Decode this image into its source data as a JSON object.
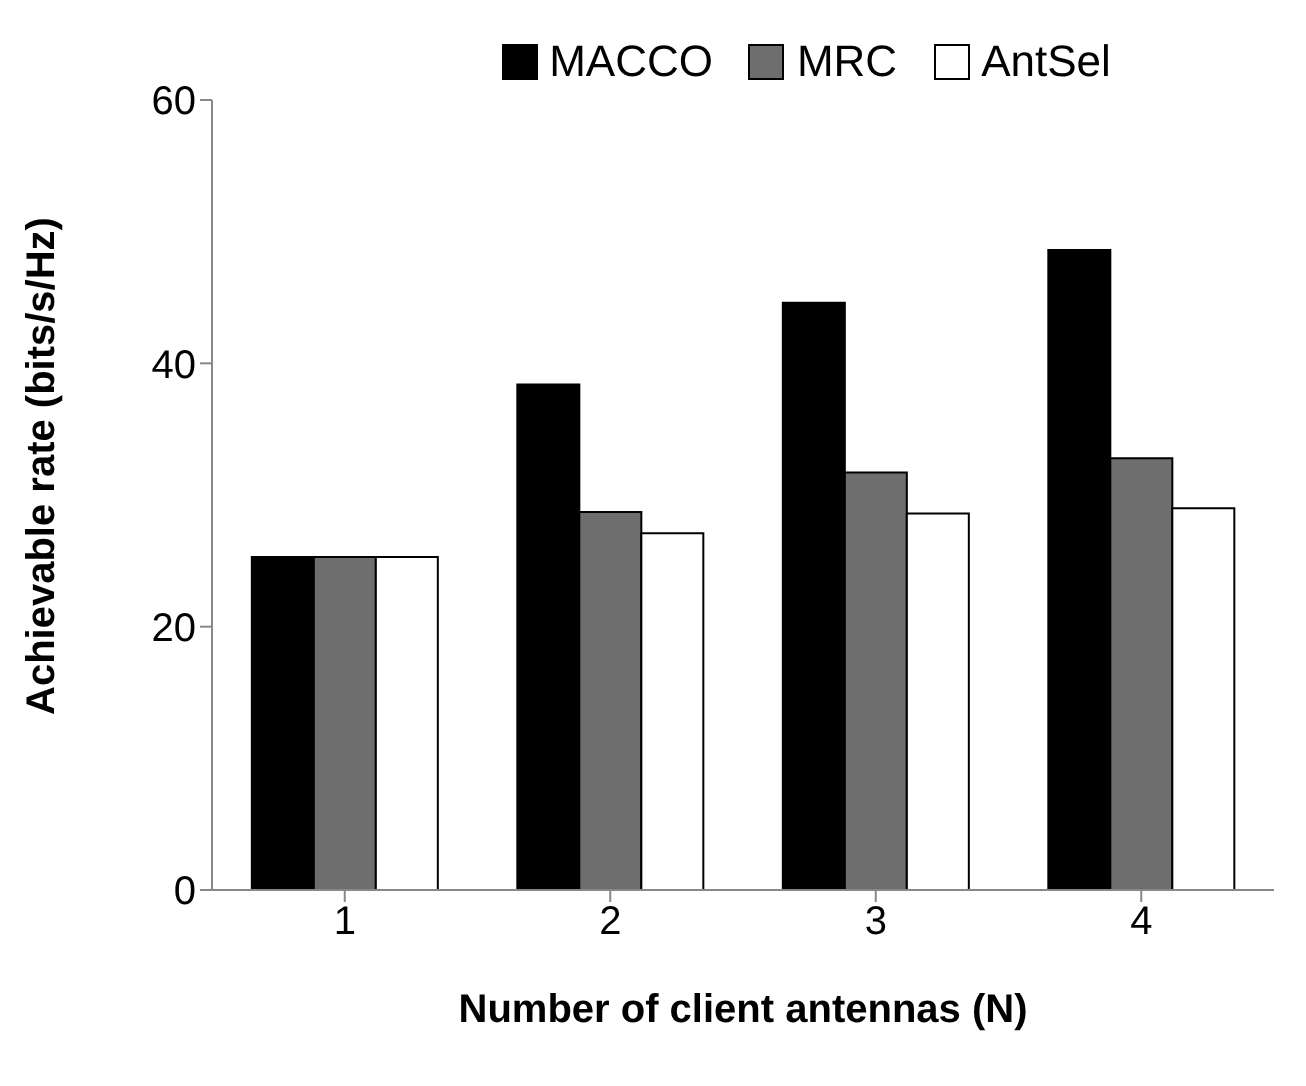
{
  "chart_data": {
    "type": "bar",
    "categories": [
      "1",
      "2",
      "3",
      "4"
    ],
    "series": [
      {
        "name": "MACCO",
        "color": "#000000",
        "values": [
          25.3,
          38.4,
          44.6,
          48.6
        ]
      },
      {
        "name": "MRC",
        "color": "#6e6e6e",
        "values": [
          25.3,
          28.7,
          31.7,
          32.8
        ]
      },
      {
        "name": "AntSel",
        "color": "#ffffff",
        "values": [
          25.3,
          27.1,
          28.6,
          29.0
        ]
      }
    ],
    "xlabel": "Number of client antennas (N)",
    "ylabel": "Achievable rate (bits/s/Hz)",
    "ylim": [
      0,
      60
    ],
    "yticks": [
      0,
      20,
      40,
      60
    ],
    "legend": "top"
  }
}
